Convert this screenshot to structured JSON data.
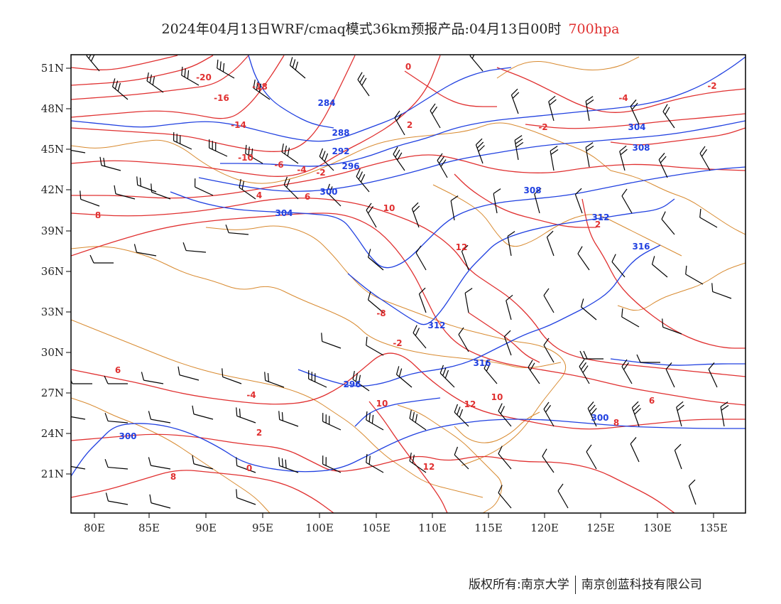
{
  "title": {
    "main": "2024年04月13日WRF/cmaq模式36km预报产品:04月13日00时",
    "level": "700hpa",
    "level_color": "#e03030"
  },
  "map": {
    "lon_ticks": [
      "80E",
      "85E",
      "90E",
      "95E",
      "100E",
      "105E",
      "110E",
      "115E",
      "120E",
      "125E",
      "130E",
      "135E"
    ],
    "lat_ticks": [
      "51N",
      "48N",
      "45N",
      "42N",
      "39N",
      "36N",
      "33N",
      "30N",
      "27N",
      "24N",
      "21N"
    ],
    "colors": {
      "temperature_contour": "#e03030",
      "geopotential_contour": "#2040e0",
      "boundary": "#d88a30",
      "wind_barb": "#000000"
    },
    "temperature_labels": [
      "-20",
      "-16",
      "-18",
      "-14",
      "-10",
      "-6",
      "-4",
      "-2",
      "0",
      "2",
      "4",
      "6",
      "8",
      "10",
      "12",
      "-2",
      "-8",
      "-4",
      "2",
      "0",
      "8",
      "6",
      "10",
      "12",
      "-2",
      "-4",
      "-2",
      "2",
      "6",
      "8",
      "10",
      "12"
    ],
    "height_labels": [
      "284",
      "288",
      "292",
      "296",
      "300",
      "304",
      "308",
      "312",
      "316",
      "300",
      "304",
      "308",
      "312",
      "316",
      "296",
      "300"
    ]
  },
  "footer": {
    "left": "版权所有:南京大学",
    "right": "南京创蓝科技有限公司"
  }
}
